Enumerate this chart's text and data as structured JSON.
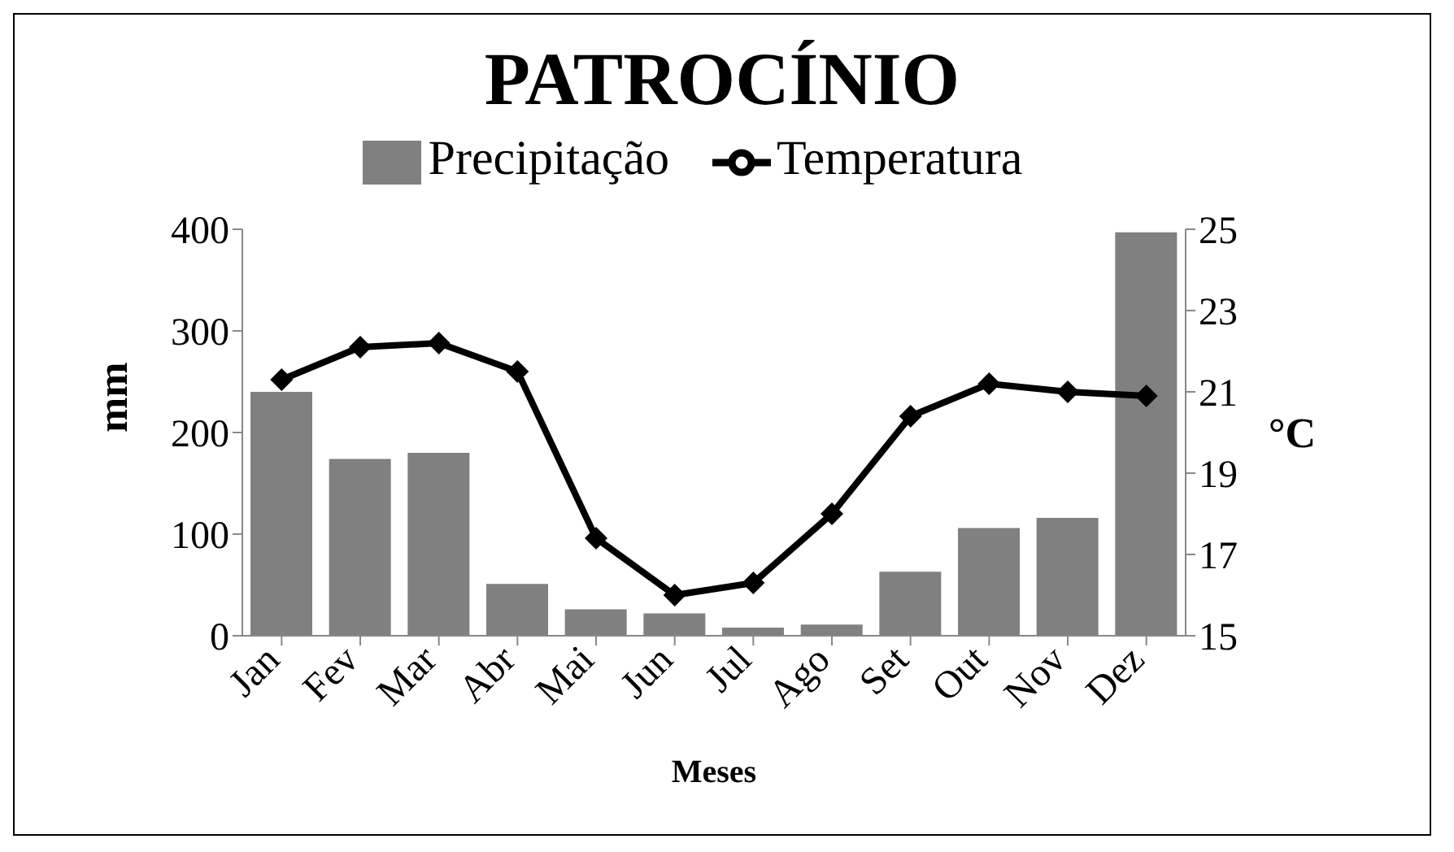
{
  "chart_data": {
    "type": "bar",
    "title": "PATROCÍNIO",
    "xlabel": "Meses",
    "ylabel": "mm",
    "y2label": "°C",
    "categories": [
      "Jan",
      "Fev",
      "Mar",
      "Abr",
      "Mai",
      "Jun",
      "Jul",
      "Ago",
      "Set",
      "Out",
      "Nov",
      "Dez"
    ],
    "series": [
      {
        "name": "Precipitação",
        "color": "#808080",
        "values": [
          240,
          174,
          180,
          51,
          26,
          22,
          8,
          11,
          63,
          106,
          116,
          397
        ]
      },
      {
        "name": "Temperatura",
        "type": "line",
        "axis": "y2",
        "color": "#000000",
        "marker": "diamond",
        "line_style": "solid",
        "values": [
          21.3,
          22.1,
          22.2,
          21.5,
          17.4,
          16.0,
          16.3,
          18.0,
          20.4,
          21.2,
          21.0,
          20.9
        ]
      }
    ],
    "ylim": [
      0,
      400
    ],
    "yticks": [
      0,
      100,
      200,
      300,
      400
    ],
    "y2lim": [
      15,
      25
    ],
    "y2ticks": [
      15,
      17,
      19,
      21,
      23,
      25
    ],
    "legend": "top",
    "grid": false
  }
}
